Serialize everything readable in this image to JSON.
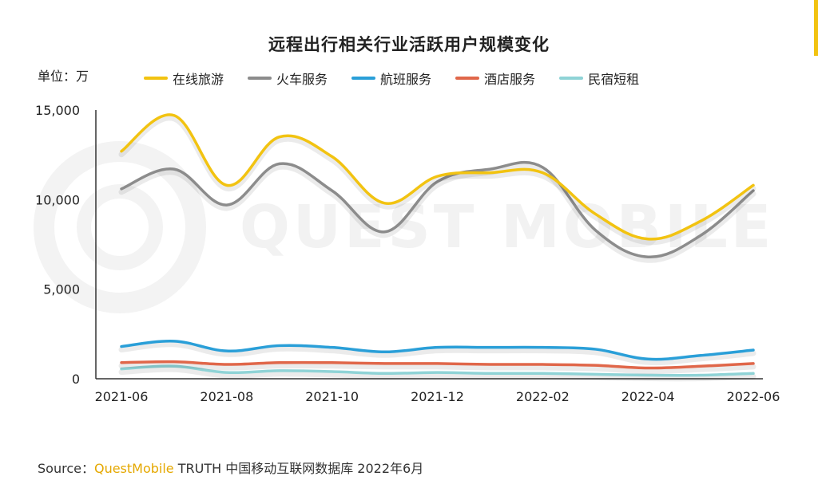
{
  "chart_data": {
    "type": "line",
    "title": "远程出行相关行业活跃用户规模变化",
    "unit_label": "单位：万",
    "x": [
      "2021-06",
      "2021-07",
      "2021-08",
      "2021-09",
      "2021-10",
      "2021-11",
      "2021-12",
      "2022-01",
      "2022-02",
      "2022-03",
      "2022-04",
      "2022-05",
      "2022-06"
    ],
    "x_tick_labels": [
      "2021-06",
      "2021-08",
      "2021-10",
      "2021-12",
      "2022-02",
      "2022-04",
      "2022-06"
    ],
    "y_tick_labels": [
      "0",
      "5,000",
      "10,000",
      "15,000"
    ],
    "ylim": [
      0,
      15000
    ],
    "grid": false,
    "legend_position": "top",
    "series": [
      {
        "name": "在线旅游",
        "color": "#f2c311",
        "values": [
          12700,
          14700,
          10800,
          13500,
          12400,
          9800,
          11300,
          11500,
          11500,
          9200,
          7800,
          8800,
          10800
        ]
      },
      {
        "name": "火车服务",
        "color": "#8c8c8c",
        "values": [
          10600,
          11700,
          9700,
          12000,
          10500,
          8200,
          11000,
          11700,
          11800,
          8300,
          6800,
          8000,
          10500
        ]
      },
      {
        "name": "航班服务",
        "color": "#2a9fd8",
        "values": [
          1800,
          2100,
          1550,
          1850,
          1750,
          1500,
          1750,
          1750,
          1750,
          1650,
          1100,
          1300,
          1600
        ]
      },
      {
        "name": "酒店服务",
        "color": "#e0674a",
        "values": [
          900,
          950,
          800,
          900,
          900,
          850,
          850,
          800,
          800,
          750,
          600,
          700,
          850
        ]
      },
      {
        "name": "民宿短租",
        "color": "#8fd3d6",
        "values": [
          550,
          700,
          350,
          450,
          400,
          300,
          350,
          300,
          300,
          250,
          200,
          200,
          300
        ]
      }
    ]
  },
  "watermark": "QUEST MOBILE",
  "source": {
    "prefix": "Source：",
    "brand": "QuestMobile",
    "suffix": " TRUTH 中国移动互联网数据库 2022年6月"
  }
}
